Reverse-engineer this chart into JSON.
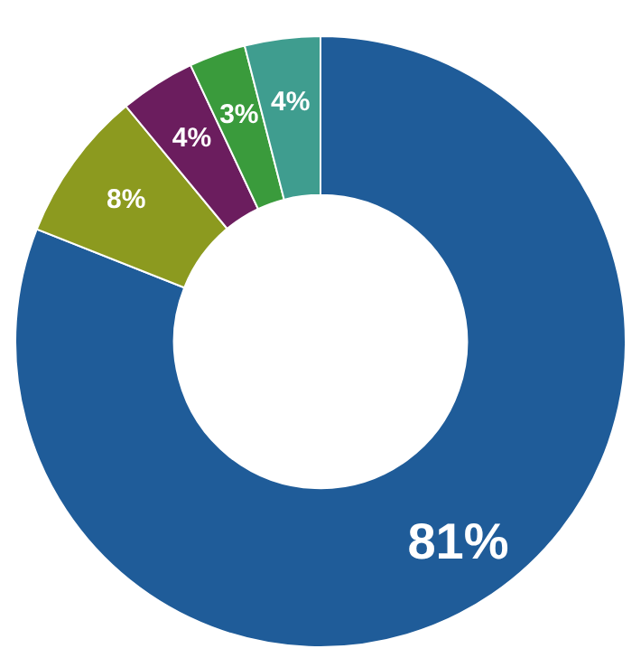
{
  "chart_data": {
    "type": "donut",
    "categories": [
      null,
      null,
      null,
      null,
      null
    ],
    "values": [
      81,
      8,
      4,
      3,
      4
    ],
    "colors": [
      "#1f5c99",
      "#8c9a1f",
      "#6b1d5e",
      "#3a9b3c",
      "#3f9d8f"
    ],
    "value_labels": [
      "81%",
      "8%",
      "4%",
      "3%",
      "4%"
    ],
    "legend": false
  }
}
